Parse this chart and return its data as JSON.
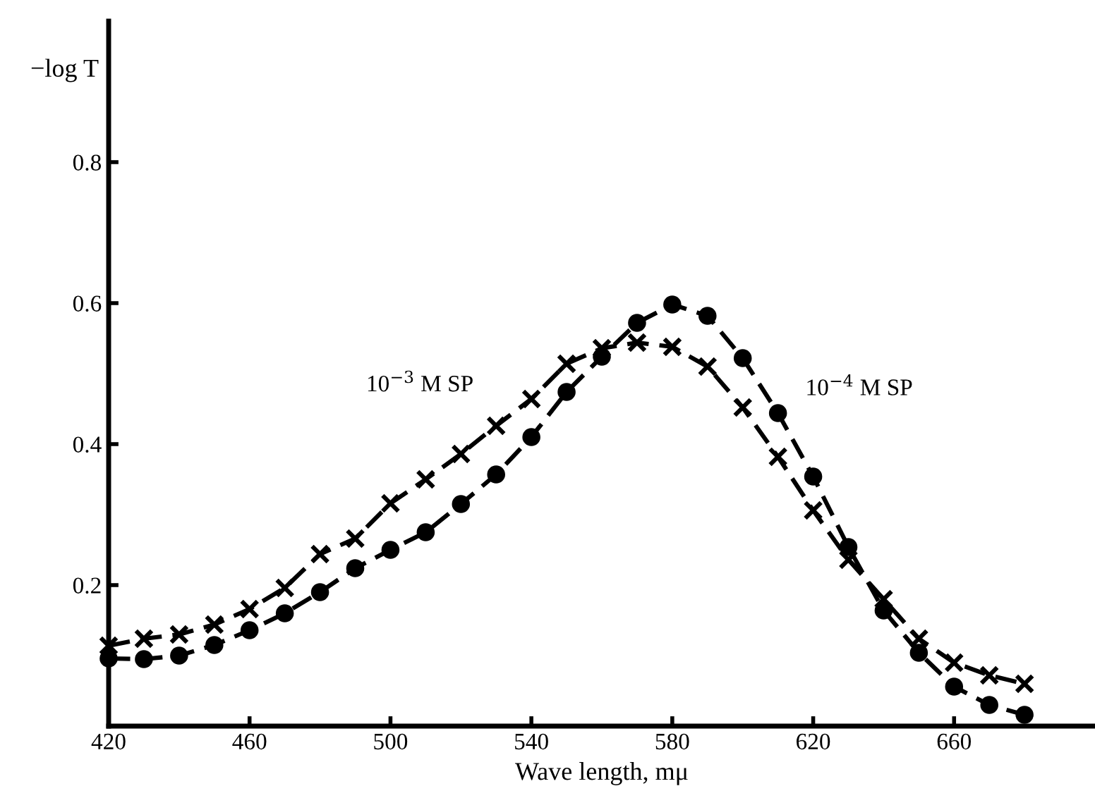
{
  "chart_data": {
    "type": "line",
    "xlabel": "Wave length, mμ",
    "ylabel": "−log T",
    "x": [
      420,
      430,
      440,
      450,
      460,
      470,
      480,
      490,
      500,
      510,
      520,
      530,
      540,
      550,
      560,
      570,
      580,
      590,
      600,
      610,
      620,
      630,
      640,
      650,
      660,
      670,
      680
    ],
    "series": [
      {
        "name": "10$^{−3}$ M SP",
        "color": "#000000",
        "marker": "cross",
        "line_style": "dashed",
        "values": [
          0.114,
          0.124,
          0.13,
          0.144,
          0.166,
          0.196,
          0.244,
          0.266,
          0.316,
          0.35,
          0.386,
          0.426,
          0.464,
          0.514,
          0.536,
          0.544,
          0.538,
          0.51,
          0.452,
          0.382,
          0.306,
          0.236,
          0.18,
          0.124,
          0.09,
          0.072,
          0.06
        ]
      },
      {
        "name": "10$^{−4}$ M SP",
        "color": "#000000",
        "marker": "circle",
        "line_style": "dashed",
        "values": [
          0.096,
          0.095,
          0.1,
          0.115,
          0.136,
          0.16,
          0.19,
          0.224,
          0.25,
          0.275,
          0.315,
          0.357,
          0.41,
          0.474,
          0.524,
          0.572,
          0.598,
          0.582,
          0.522,
          0.444,
          0.354,
          0.254,
          0.164,
          0.104,
          0.056,
          0.03,
          0.016
        ]
      }
    ],
    "xlim": [
      420,
      700
    ],
    "ylim": [
      0,
      1.0
    ],
    "xticks": [
      420,
      460,
      500,
      540,
      580,
      620,
      660
    ],
    "yticks": [
      {
        "value": 0.2,
        "label": "0.2"
      },
      {
        "value": 0.4,
        "label": "0.4"
      },
      {
        "value": 0.6,
        "label": "0.6"
      },
      {
        "value": 0.8,
        "label": "0.8"
      }
    ],
    "grid": false,
    "legend": false
  }
}
